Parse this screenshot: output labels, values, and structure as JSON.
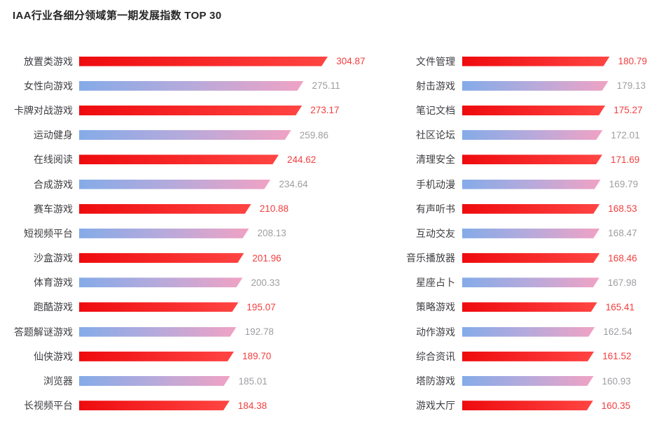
{
  "title": "IAA行业各细分领域第一期发展指数 TOP 30",
  "chart_data": {
    "type": "bar",
    "orientation": "horizontal",
    "title": "IAA行业各细分领域第一期发展指数 TOP 30",
    "grid": false,
    "legend": false,
    "axes_shown": false,
    "value_range": [
      0,
      330
    ],
    "value_format": "2dp",
    "columns": [
      {
        "name": "left",
        "items": [
          {
            "label": "放置类游戏",
            "value": 304.87,
            "emphasis": true
          },
          {
            "label": "女性向游戏",
            "value": 275.11,
            "emphasis": false
          },
          {
            "label": "卡牌对战游戏",
            "value": 273.17,
            "emphasis": true
          },
          {
            "label": "运动健身",
            "value": 259.86,
            "emphasis": false
          },
          {
            "label": "在线阅读",
            "value": 244.62,
            "emphasis": true
          },
          {
            "label": "合成游戏",
            "value": 234.64,
            "emphasis": false
          },
          {
            "label": "赛车游戏",
            "value": 210.88,
            "emphasis": true
          },
          {
            "label": "短视频平台",
            "value": 208.13,
            "emphasis": false
          },
          {
            "label": "沙盒游戏",
            "value": 201.96,
            "emphasis": true
          },
          {
            "label": "体育游戏",
            "value": 200.33,
            "emphasis": false
          },
          {
            "label": "跑酷游戏",
            "value": 195.07,
            "emphasis": true
          },
          {
            "label": "答题解谜游戏",
            "value": 192.78,
            "emphasis": false
          },
          {
            "label": "仙侠游戏",
            "value": 189.7,
            "emphasis": true
          },
          {
            "label": "浏览器",
            "value": 185.01,
            "emphasis": false
          },
          {
            "label": "长视频平台",
            "value": 184.38,
            "emphasis": true
          }
        ]
      },
      {
        "name": "right",
        "items": [
          {
            "label": "文件管理",
            "value": 180.79,
            "emphasis": true
          },
          {
            "label": "射击游戏",
            "value": 179.13,
            "emphasis": false
          },
          {
            "label": "笔记文档",
            "value": 175.27,
            "emphasis": true
          },
          {
            "label": "社区论坛",
            "value": 172.01,
            "emphasis": false
          },
          {
            "label": "清理安全",
            "value": 171.69,
            "emphasis": true
          },
          {
            "label": "手机动漫",
            "value": 169.79,
            "emphasis": false
          },
          {
            "label": "有声听书",
            "value": 168.53,
            "emphasis": true
          },
          {
            "label": "互动交友",
            "value": 168.47,
            "emphasis": false
          },
          {
            "label": "音乐播放器",
            "value": 168.46,
            "emphasis": true
          },
          {
            "label": "星座占卜",
            "value": 167.98,
            "emphasis": false
          },
          {
            "label": "策略游戏",
            "value": 165.41,
            "emphasis": true
          },
          {
            "label": "动作游戏",
            "value": 162.54,
            "emphasis": false
          },
          {
            "label": "综合资讯",
            "value": 161.52,
            "emphasis": true
          },
          {
            "label": "塔防游戏",
            "value": 160.93,
            "emphasis": false
          },
          {
            "label": "游戏大厅",
            "value": 160.35,
            "emphasis": true
          }
        ]
      }
    ],
    "colors": {
      "emphasis_bar_gradient": [
        "#ee0b0e",
        "#ff4543"
      ],
      "normal_bar_gradient": [
        "#85abe8",
        "#b5aadc",
        "#f0a2c4"
      ],
      "emphasis_value_color": "#f23d3d",
      "normal_value_color": "#9e9ea3",
      "label_color": "#3d3d42",
      "title_color": "#262626",
      "background": "#ffffff"
    }
  }
}
